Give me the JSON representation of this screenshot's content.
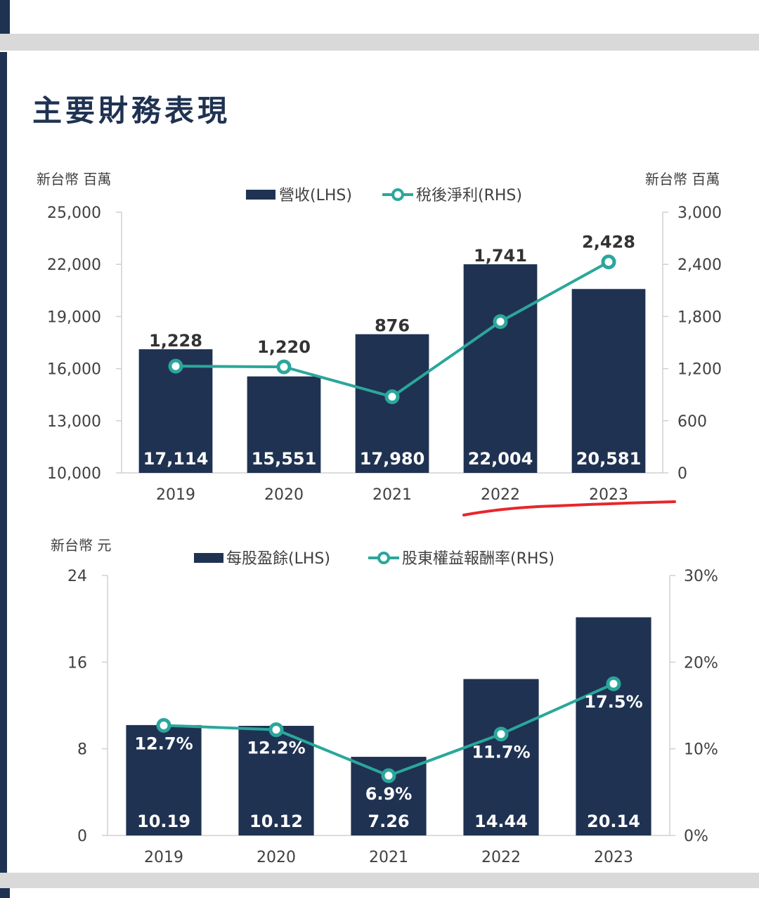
{
  "page": {
    "title": "主要財務表現"
  },
  "colors": {
    "bar": "#1f3252",
    "line": "#2aa79b",
    "text": "#404040",
    "grid": "#d0d0d0",
    "underline": "#e8262b"
  },
  "chart_data": [
    {
      "type": "bar",
      "categories": [
        "2019",
        "2020",
        "2021",
        "2022",
        "2023"
      ],
      "y_left_unit": "新台幣 百萬",
      "y_right_unit": "新台幣 百萬",
      "left_ticks": [
        "25,000",
        "22,000",
        "19,000",
        "16,000",
        "13,000",
        "10,000"
      ],
      "right_ticks": [
        "3,000",
        "2,400",
        "1,800",
        "1,200",
        "600",
        "0"
      ],
      "ylim_left": [
        10000,
        25000
      ],
      "ylim_right": [
        0,
        3000
      ],
      "grid": false,
      "legend_position": "top",
      "series": [
        {
          "name": "營收(LHS)",
          "kind": "bar",
          "axis": "left",
          "values": [
            17114,
            15551,
            17980,
            22004,
            20581
          ],
          "labels": [
            "17,114",
            "15,551",
            "17,980",
            "22,004",
            "20,581"
          ]
        },
        {
          "name": "稅後淨利(RHS)",
          "kind": "line",
          "axis": "right",
          "values": [
            1228,
            1220,
            876,
            1741,
            2428
          ],
          "labels": [
            "1,228",
            "1,220",
            "876",
            "1,741",
            "2,428"
          ]
        }
      ]
    },
    {
      "type": "bar",
      "categories": [
        "2019",
        "2020",
        "2021",
        "2022",
        "2023"
      ],
      "y_left_unit": "新台幣 元",
      "left_ticks": [
        "24",
        "16",
        "8",
        "0"
      ],
      "right_ticks": [
        "30%",
        "20%",
        "10%",
        "0%"
      ],
      "ylim_left": [
        0,
        24
      ],
      "ylim_right": [
        0,
        30
      ],
      "grid": false,
      "legend_position": "top",
      "series": [
        {
          "name": "每股盈餘(LHS)",
          "kind": "bar",
          "axis": "left",
          "values": [
            10.19,
            10.12,
            7.26,
            14.44,
            20.14
          ],
          "labels": [
            "10.19",
            "10.12",
            "7.26",
            "14.44",
            "20.14"
          ]
        },
        {
          "name": "股東權益報酬率(RHS)",
          "kind": "line",
          "axis": "right",
          "values": [
            12.7,
            12.2,
            6.9,
            11.7,
            17.5
          ],
          "labels": [
            "12.7%",
            "12.2%",
            "6.9%",
            "11.7%",
            "17.5%"
          ]
        }
      ]
    }
  ]
}
